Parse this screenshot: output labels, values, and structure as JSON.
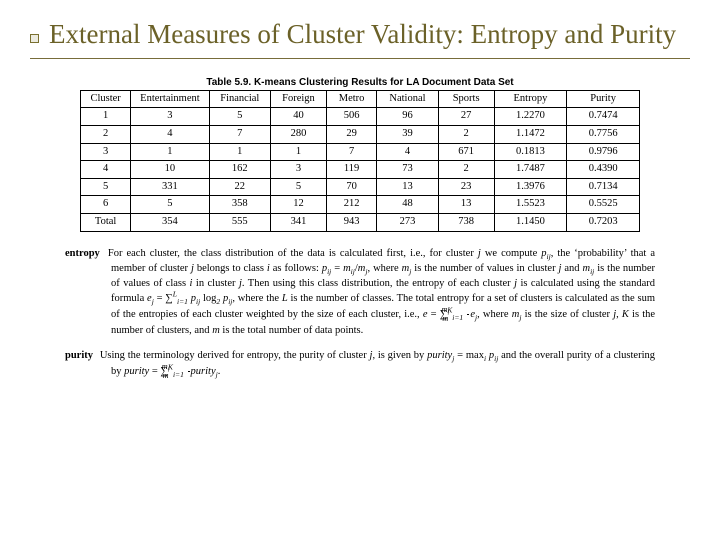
{
  "title": "External Measures of Cluster Validity: Entropy and Purity",
  "table": {
    "caption": "Table 5.9.  K-means Clustering Results for LA Document Data Set",
    "columns": [
      "Cluster",
      "Entertainment",
      "Financial",
      "Foreign",
      "Metro",
      "National",
      "Sports",
      "Entropy",
      "Purity"
    ],
    "rows": [
      [
        "1",
        "3",
        "5",
        "40",
        "506",
        "96",
        "27",
        "1.2270",
        "0.7474"
      ],
      [
        "2",
        "4",
        "7",
        "280",
        "29",
        "39",
        "2",
        "1.1472",
        "0.7756"
      ],
      [
        "3",
        "1",
        "1",
        "1",
        "7",
        "4",
        "671",
        "0.1813",
        "0.9796"
      ],
      [
        "4",
        "10",
        "162",
        "3",
        "119",
        "73",
        "2",
        "1.7487",
        "0.4390"
      ],
      [
        "5",
        "331",
        "22",
        "5",
        "70",
        "13",
        "23",
        "1.3976",
        "0.7134"
      ],
      [
        "6",
        "5",
        "358",
        "12",
        "212",
        "48",
        "13",
        "1.5523",
        "0.5525"
      ],
      [
        "Total",
        "354",
        "555",
        "341",
        "943",
        "273",
        "738",
        "1.1450",
        "0.7203"
      ]
    ]
  },
  "defs": {
    "entropy_term": "entropy",
    "purity_term": "purity"
  }
}
